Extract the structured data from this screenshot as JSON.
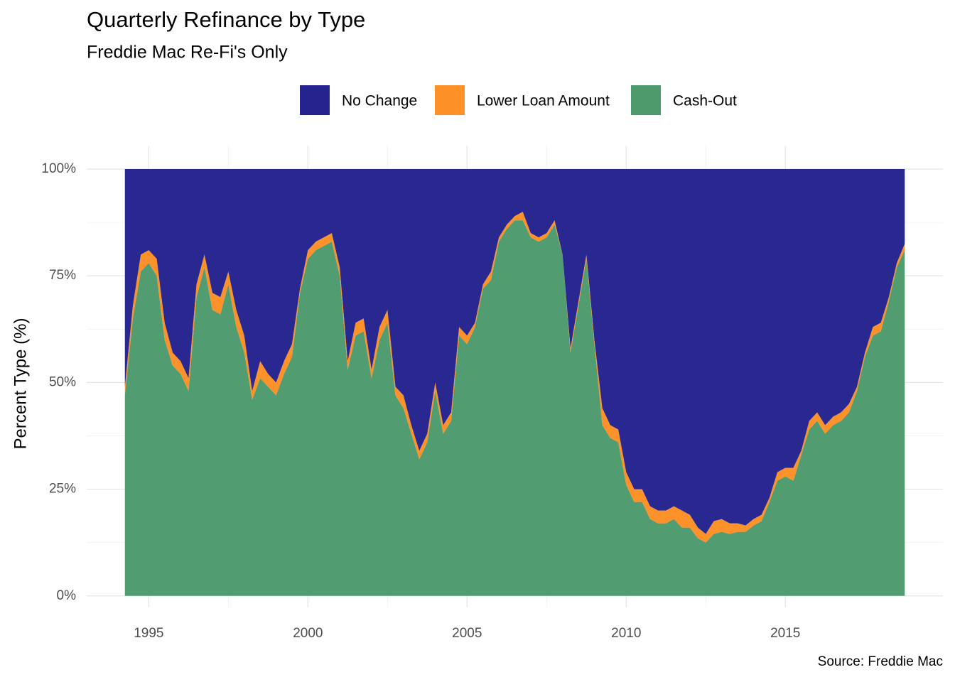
{
  "chart_data": {
    "type": "stacked_area",
    "title": "Quarterly Refinance by Type",
    "subtitle": "Freddie Mac Re-Fi's Only",
    "ylabel": "Percent Type (%)",
    "caption": "Source: Freddie Mac",
    "x": [
      1994.25,
      1994.5,
      1994.75,
      1995,
      1995.25,
      1995.5,
      1995.75,
      1996,
      1996.25,
      1996.5,
      1996.75,
      1997,
      1997.25,
      1997.5,
      1997.75,
      1998,
      1998.25,
      1998.5,
      1998.75,
      1999,
      1999.25,
      1999.5,
      1999.75,
      2000,
      2000.25,
      2000.5,
      2000.75,
      2001,
      2001.25,
      2001.5,
      2001.75,
      2002,
      2002.25,
      2002.5,
      2002.75,
      2003,
      2003.25,
      2003.5,
      2003.75,
      2004,
      2004.25,
      2004.5,
      2004.75,
      2005,
      2005.25,
      2005.5,
      2005.75,
      2006,
      2006.25,
      2006.5,
      2006.75,
      2007,
      2007.25,
      2007.5,
      2007.75,
      2008,
      2008.25,
      2008.5,
      2008.75,
      2009,
      2009.25,
      2009.5,
      2009.75,
      2010,
      2010.25,
      2010.5,
      2010.75,
      2011,
      2011.25,
      2011.5,
      2011.75,
      2012,
      2012.25,
      2012.5,
      2012.75,
      2013,
      2013.25,
      2013.5,
      2013.75,
      2014,
      2014.25,
      2014.5,
      2014.75,
      2015,
      2015.25,
      2015.5,
      2015.75,
      2016,
      2016.25,
      2016.5,
      2016.75,
      2017,
      2017.25,
      2017.5,
      2017.75,
      2018,
      2018.25,
      2018.5,
      2018.75
    ],
    "series": [
      {
        "name": "No Change",
        "color": "#25238e",
        "values": [
          51,
          32,
          20,
          19,
          21,
          36,
          43,
          45,
          49,
          27,
          20,
          29,
          30,
          24,
          33,
          39,
          52,
          45,
          48,
          50,
          45,
          41,
          28,
          19,
          17,
          16,
          15,
          23,
          45,
          36,
          35,
          47,
          37,
          33,
          51,
          53,
          60,
          66,
          62,
          50,
          60,
          57,
          37,
          39,
          36,
          27,
          24,
          16,
          13,
          11,
          10,
          15,
          16,
          15,
          12,
          20,
          42,
          31,
          20,
          40,
          56,
          60,
          61,
          71,
          75,
          75,
          79,
          80,
          80,
          79,
          80,
          81,
          84,
          85.5,
          82.5,
          82,
          83,
          83,
          83.5,
          82,
          81,
          77,
          71,
          70,
          70,
          66,
          59,
          57,
          60,
          58,
          57,
          55,
          51,
          43,
          37,
          36,
          30,
          22,
          17.5
        ]
      },
      {
        "name": "Lower Loan Amount",
        "color": "#fd9027",
        "values": [
          2,
          3,
          4,
          3,
          4,
          4,
          3,
          3,
          3,
          3,
          3,
          4,
          4,
          3,
          4,
          4,
          2,
          4,
          3,
          3,
          3,
          3,
          1,
          2,
          2,
          2,
          2,
          2,
          2,
          3,
          3,
          2,
          3,
          3,
          2,
          3,
          2,
          2,
          2,
          2,
          2,
          2,
          2,
          2,
          1,
          1,
          2,
          1,
          1,
          1,
          2,
          1,
          1,
          1,
          1,
          0,
          1,
          1,
          1,
          1,
          4,
          3,
          3,
          3,
          3,
          3,
          3,
          3,
          3,
          3,
          4,
          3,
          2.5,
          2,
          3,
          3,
          2.5,
          2,
          1.5,
          1.5,
          1.5,
          1,
          2,
          2,
          3,
          1,
          2,
          2,
          2,
          2,
          2,
          2,
          1,
          1,
          2,
          2,
          1,
          1,
          1.5
        ]
      },
      {
        "name": "Cash-Out",
        "color": "#4e9a6d",
        "values": [
          47,
          65,
          76,
          78,
          75,
          60,
          54,
          52,
          48,
          70,
          77,
          67,
          66,
          73,
          63,
          57,
          46,
          51,
          49,
          47,
          52,
          56,
          71,
          79,
          81,
          82,
          83,
          75,
          53,
          61,
          62,
          51,
          60,
          64,
          47,
          44,
          38,
          32,
          36,
          48,
          38,
          41,
          61,
          59,
          63,
          72,
          74,
          83,
          86,
          88,
          88,
          84,
          83,
          84,
          87,
          80,
          57,
          68,
          79,
          59,
          40,
          37,
          36,
          26,
          22,
          22,
          18,
          17,
          17,
          18,
          16,
          16,
          13.5,
          12.5,
          14.5,
          15,
          14.5,
          15,
          15,
          16.5,
          17.5,
          22,
          27,
          28,
          27,
          33,
          39,
          41,
          38,
          40,
          41,
          43,
          48,
          56,
          61,
          62,
          69,
          77,
          81
        ]
      }
    ],
    "xlim": [
      1993.05,
      2019.95
    ],
    "xticks": [
      1995,
      2000,
      2005,
      2010,
      2015
    ],
    "ylim": [
      -2.7,
      105.5
    ],
    "yticks": [
      {
        "value": 0,
        "label": "0%"
      },
      {
        "value": 25,
        "label": "25%"
      },
      {
        "value": 50,
        "label": "50%"
      },
      {
        "value": 75,
        "label": "75%"
      },
      {
        "value": 100,
        "label": "100%"
      }
    ],
    "grid": true,
    "legend": "top"
  }
}
